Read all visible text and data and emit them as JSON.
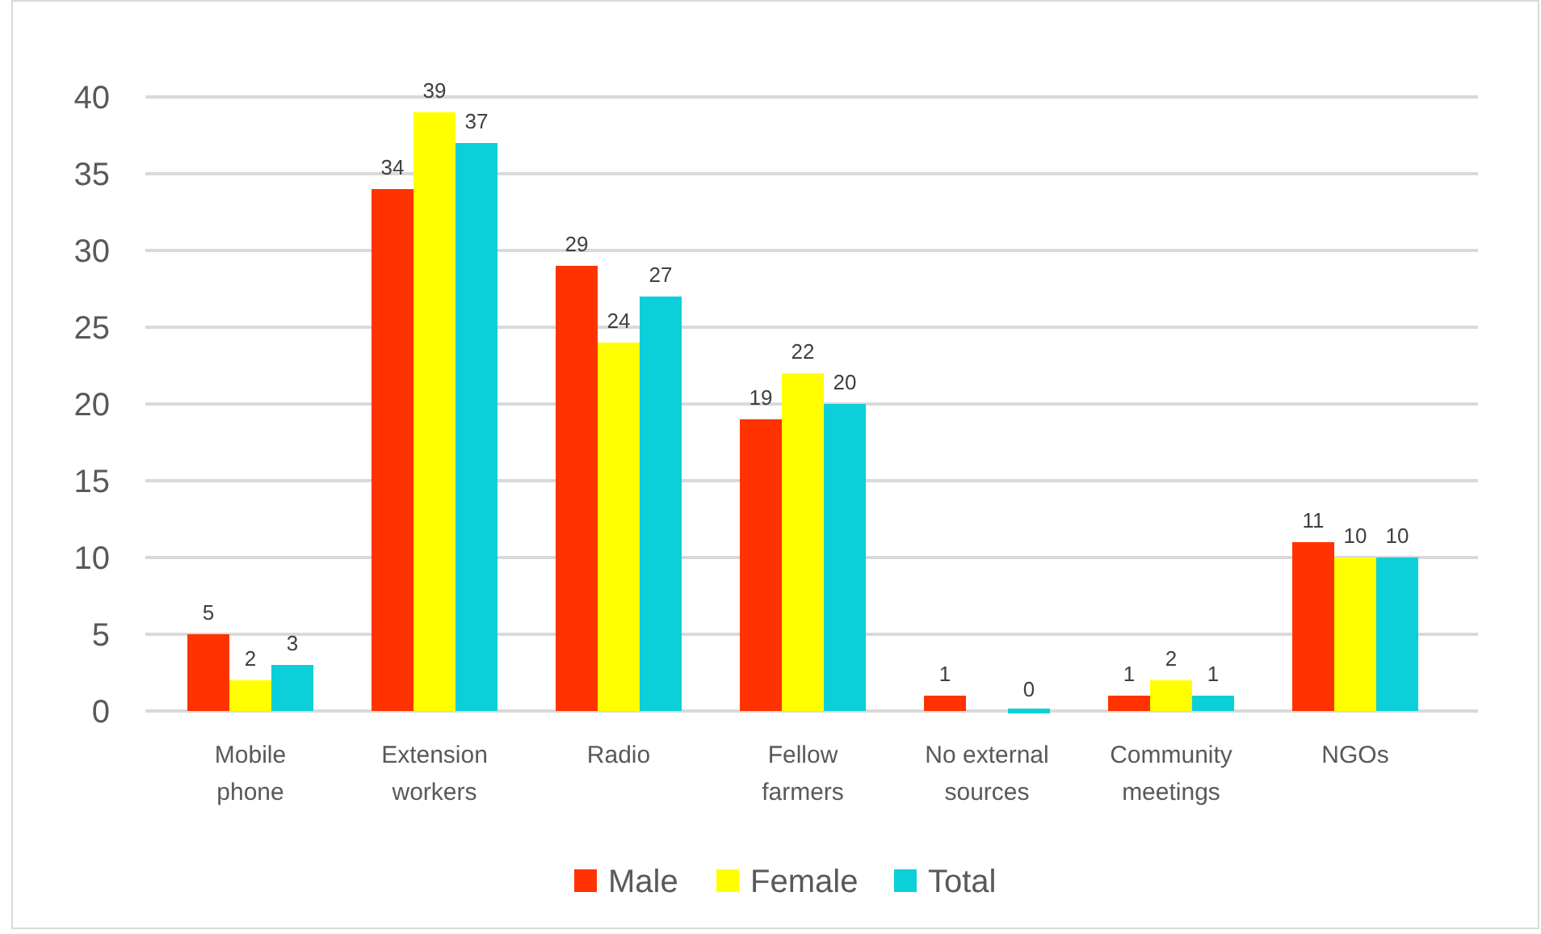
{
  "chart_data": {
    "type": "bar",
    "categories": [
      "Mobile phone",
      "Extension workers",
      "Radio",
      "Fellow farmers",
      "No external sources",
      "Community meetings",
      "NGOs"
    ],
    "series": [
      {
        "name": "Male",
        "color": "#ff3300",
        "values": [
          5,
          34,
          29,
          19,
          1,
          1,
          11
        ]
      },
      {
        "name": "Female",
        "color": "#ffff00",
        "values": [
          2,
          39,
          24,
          22,
          null,
          2,
          10
        ]
      },
      {
        "name": "Total",
        "color": "#0bd0d9",
        "values": [
          3,
          37,
          27,
          20,
          0,
          1,
          10
        ]
      }
    ],
    "ylim": [
      0,
      40
    ],
    "yticks": [
      0,
      5,
      10,
      15,
      20,
      25,
      30,
      35,
      40
    ],
    "grid": "y",
    "legend": "bottom",
    "data_labels": true
  }
}
